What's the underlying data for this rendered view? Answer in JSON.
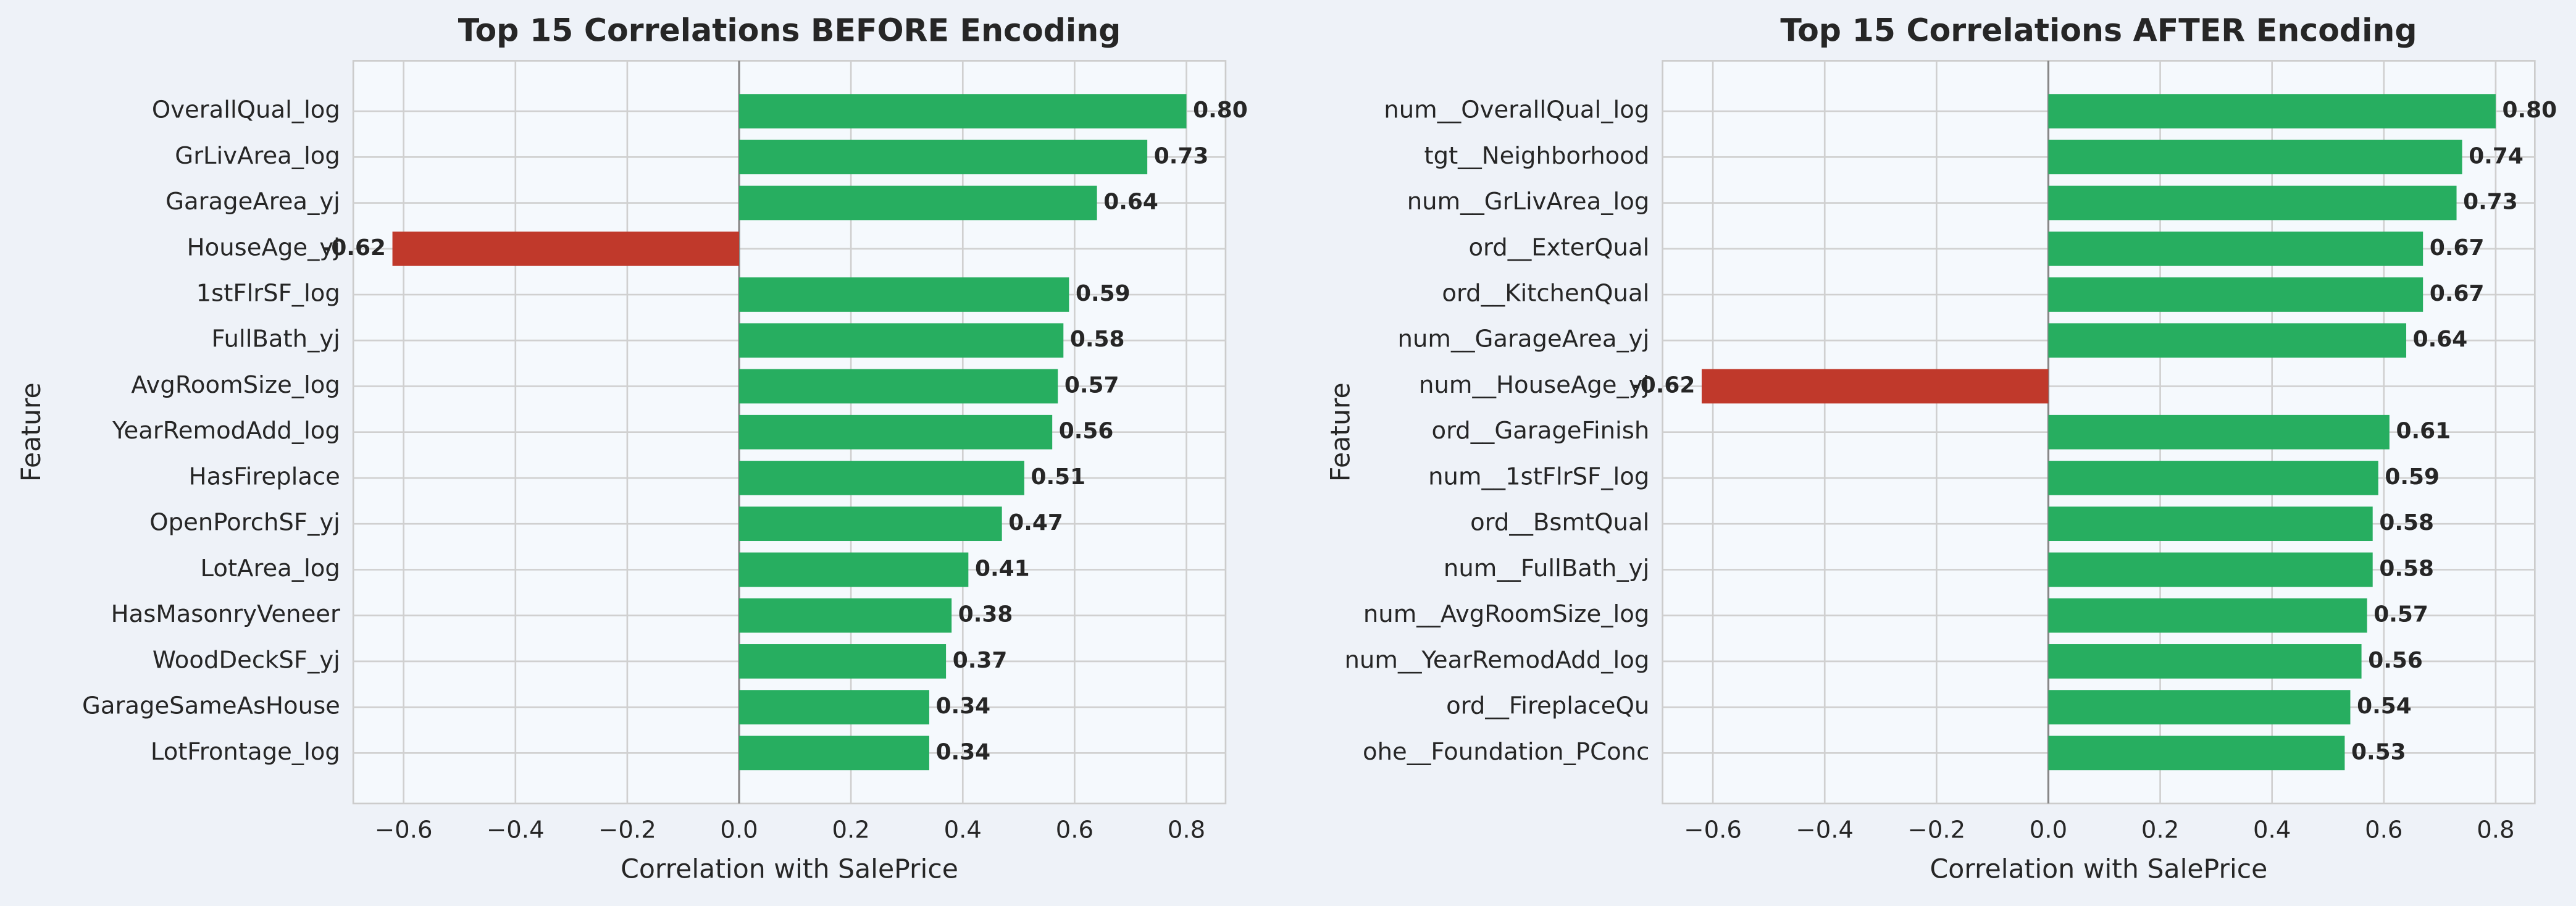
{
  "chart_data": [
    {
      "type": "barh",
      "title": "Top 15 Correlations BEFORE Encoding",
      "xlabel": "Correlation with SalePrice",
      "ylabel": "Feature",
      "categories": [
        "OverallQual_log",
        "GrLivArea_log",
        "GarageArea_yj",
        "HouseAge_yj",
        "1stFlrSF_log",
        "FullBath_yj",
        "AvgRoomSize_log",
        "YearRemodAdd_log",
        "HasFireplace",
        "OpenPorchSF_yj",
        "LotArea_log",
        "HasMasonryVeneer",
        "WoodDeckSF_yj",
        "GarageSameAsHouse",
        "LotFrontage_log"
      ],
      "values": [
        0.8,
        0.73,
        0.64,
        -0.62,
        0.59,
        0.58,
        0.57,
        0.56,
        0.51,
        0.47,
        0.41,
        0.38,
        0.37,
        0.34,
        0.34
      ],
      "value_labels": [
        "0.80",
        "0.73",
        "0.64",
        "-0.62",
        "0.59",
        "0.58",
        "0.57",
        "0.56",
        "0.51",
        "0.47",
        "0.41",
        "0.38",
        "0.37",
        "0.34",
        "0.34"
      ],
      "positive_color": "#27ae60",
      "negative_color": "#c0392b",
      "xlim": [
        -0.69,
        0.87
      ],
      "xticks": [
        {
          "value": -0.6,
          "label": "−0.6"
        },
        {
          "value": -0.4,
          "label": "−0.4"
        },
        {
          "value": -0.2,
          "label": "−0.2"
        },
        {
          "value": 0,
          "label": "0.0"
        },
        0.2,
        0.4,
        0.6,
        0.8
      ],
      "grid": true
    },
    {
      "type": "barh",
      "title": "Top 15 Correlations AFTER Encoding",
      "xlabel": "Correlation with SalePrice",
      "ylabel": "Feature",
      "categories": [
        "num__OverallQual_log",
        "tgt__Neighborhood",
        "num__GrLivArea_log",
        "ord__ExterQual",
        "ord__KitchenQual",
        "num__GarageArea_yj",
        "num__HouseAge_yj",
        "ord__GarageFinish",
        "num__1stFlrSF_log",
        "ord__BsmtQual",
        "num__FullBath_yj",
        "num__AvgRoomSize_log",
        "num__YearRemodAdd_log",
        "ord__FireplaceQu",
        "ohe__Foundation_PConc"
      ],
      "values": [
        0.8,
        0.74,
        0.73,
        0.67,
        0.67,
        0.64,
        -0.62,
        0.61,
        0.59,
        0.58,
        0.58,
        0.57,
        0.56,
        0.54,
        0.53
      ],
      "value_labels": [
        "0.80",
        "0.74",
        "0.73",
        "0.67",
        "0.67",
        "0.64",
        "-0.62",
        "0.61",
        "0.59",
        "0.58",
        "0.58",
        "0.57",
        "0.56",
        "0.54",
        "0.53"
      ],
      "positive_color": "#27ae60",
      "negative_color": "#c0392b",
      "xlim": [
        -0.69,
        0.87
      ],
      "xticks": [
        {
          "value": -0.6,
          "label": "−0.6"
        },
        {
          "value": -0.4,
          "label": "−0.4"
        },
        {
          "value": -0.2,
          "label": "−0.2"
        },
        {
          "value": 0,
          "label": "0.0"
        },
        0.2,
        0.4,
        0.6,
        0.8
      ],
      "grid": true
    }
  ]
}
